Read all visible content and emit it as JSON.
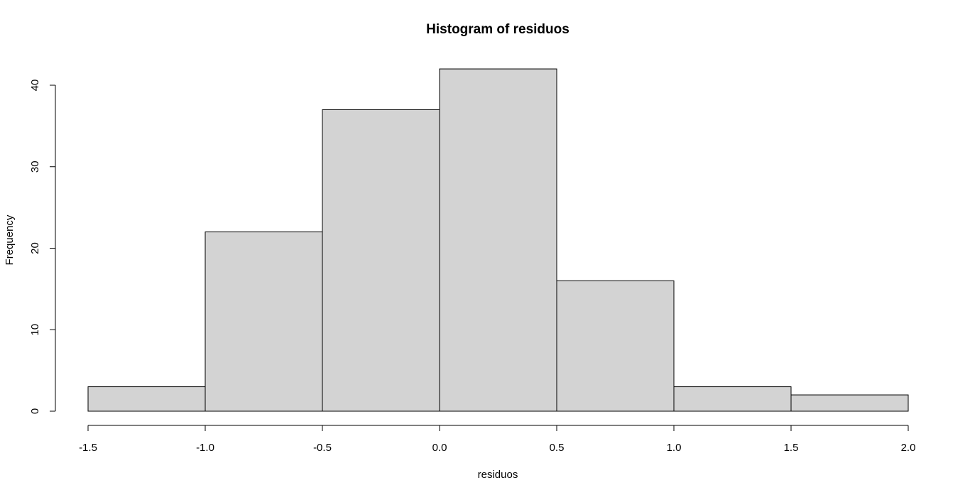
{
  "colors": {
    "bar_fill": "#d3d3d3",
    "bar_stroke": "#000000",
    "background": "#ffffff",
    "text": "#000000"
  },
  "chart_data": {
    "type": "bar",
    "title": "Histogram of residuos",
    "xlabel": "residuos",
    "ylabel": "Frequency",
    "bins": [
      {
        "from": -1.5,
        "to": -1.0,
        "count": 3
      },
      {
        "from": -1.0,
        "to": -0.5,
        "count": 22
      },
      {
        "from": -0.5,
        "to": 0.0,
        "count": 37
      },
      {
        "from": 0.0,
        "to": 0.5,
        "count": 42
      },
      {
        "from": 0.5,
        "to": 1.0,
        "count": 16
      },
      {
        "from": 1.0,
        "to": 1.5,
        "count": 3
      },
      {
        "from": 1.5,
        "to": 2.0,
        "count": 2
      }
    ],
    "xlim": [
      -1.5,
      2.0
    ],
    "ylim": [
      0,
      42
    ],
    "x_ticks": [
      -1.5,
      -1.0,
      -0.5,
      0.0,
      0.5,
      1.0,
      1.5,
      2.0
    ],
    "x_tick_labels": [
      "-1.5",
      "-1.0",
      "-0.5",
      "0.0",
      "0.5",
      "1.0",
      "1.5",
      "2.0"
    ],
    "y_ticks": [
      0,
      10,
      20,
      30,
      40
    ],
    "y_tick_labels": [
      "0",
      "10",
      "20",
      "30",
      "40"
    ],
    "grid": false,
    "legend": "none"
  }
}
